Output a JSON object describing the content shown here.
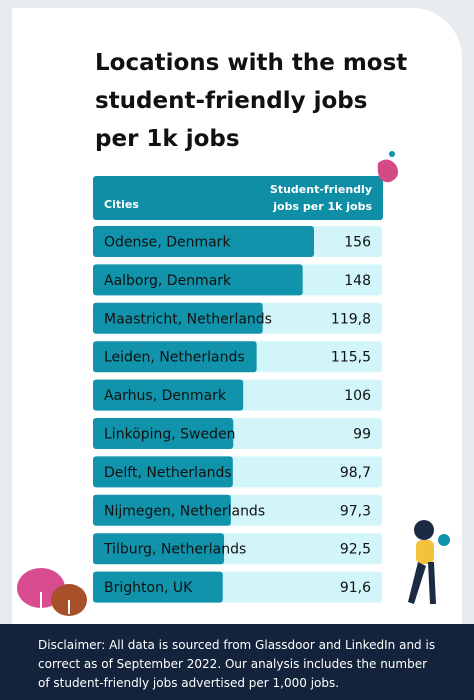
{
  "chart_data": {
    "type": "bar",
    "orientation": "horizontal",
    "title": "Locations with the most student-friendly jobs per 1k jobs",
    "category_header": "Cities",
    "value_header": "Student-friendly jobs per 1k jobs",
    "categories": [
      "Odense, Denmark",
      "Aalborg, Denmark",
      "Maastricht, Netherlands",
      "Leiden, Netherlands",
      "Aarhus, Denmark",
      "Linköping, Sweden",
      "Delft, Netherlands",
      "Nijmegen, Netherlands",
      "Tilburg, Netherlands",
      "Brighton, UK"
    ],
    "values": [
      156,
      148,
      119.8,
      115.5,
      106,
      99,
      98.7,
      97.3,
      92.5,
      91.6
    ],
    "value_labels": [
      "156",
      "148",
      "119,8",
      "115,5",
      "106",
      "99",
      "98,7",
      "97,3",
      "92,5",
      "91,6"
    ],
    "color": "#1194ab",
    "xlim": [
      0,
      204
    ],
    "disclaimer": "Disclaimer: All data is sourced from Glassdoor and LinkedIn and is correct as of September 2022. Our analysis includes the number of student-friendly jobs advertised per 1,000 jobs."
  }
}
